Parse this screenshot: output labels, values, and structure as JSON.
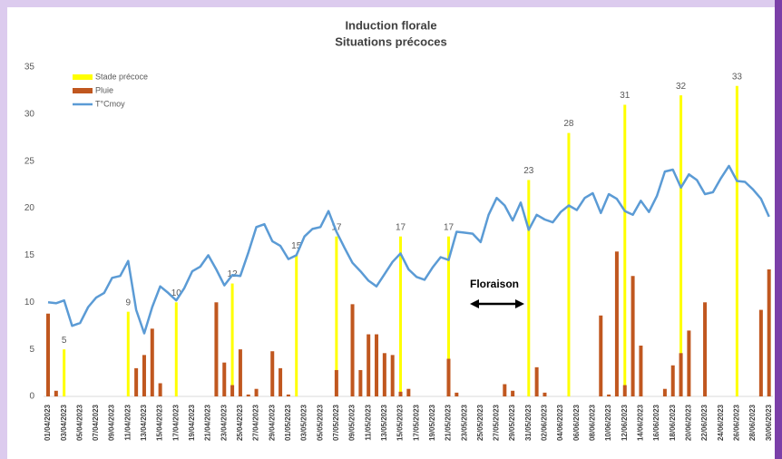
{
  "chart_data": {
    "type": "bar_line",
    "title": "Induction florale",
    "subtitle": "Situations précoces",
    "annotation": "Floraison",
    "legend": "top-left",
    "categories": [
      "01/04/2023",
      null,
      "03/04/2023",
      null,
      "05/04/2023",
      null,
      "07/04/2023",
      null,
      "09/04/2023",
      null,
      "11/04/2023",
      null,
      "13/04/2023",
      null,
      "15/04/2023",
      null,
      "17/04/2023",
      null,
      "19/04/2023",
      null,
      "21/04/2023",
      null,
      "23/04/2023",
      null,
      "25/04/2023",
      null,
      "27/04/2023",
      null,
      "29/04/2023",
      null,
      "01/05/2023",
      null,
      "03/05/2023",
      null,
      "05/05/2023",
      null,
      "07/05/2023",
      null,
      "09/05/2023",
      null,
      "11/05/2023",
      null,
      "13/05/2023",
      null,
      "15/05/2023",
      null,
      "17/05/2023",
      null,
      "19/05/2023",
      null,
      "21/05/2023",
      null,
      "23/05/2023",
      null,
      "25/05/2023",
      null,
      "27/05/2023",
      null,
      "29/05/2023",
      null,
      "31/05/2023",
      null,
      "02/06/2023",
      null,
      "04/06/2023",
      null,
      "06/06/2023",
      null,
      "08/06/2023",
      null,
      "10/06/2023",
      null,
      "12/06/2023",
      null,
      "14/06/2023",
      null,
      "16/06/2023",
      null,
      "18/06/2023",
      null,
      "20/06/2023",
      null,
      "22/06/2023",
      null,
      "24/06/2023",
      null,
      "26/06/2023",
      null,
      "28/06/2023",
      null,
      "30/06/2023"
    ],
    "series": [
      {
        "name": "Stade précoce",
        "kind": "bar",
        "color": "#ffff00",
        "values": [
          null,
          null,
          5,
          null,
          null,
          null,
          null,
          null,
          null,
          null,
          9,
          null,
          null,
          null,
          null,
          null,
          10,
          null,
          null,
          null,
          null,
          null,
          null,
          12,
          null,
          null,
          null,
          null,
          null,
          null,
          null,
          15,
          null,
          null,
          null,
          null,
          17,
          null,
          null,
          null,
          null,
          null,
          null,
          null,
          17,
          null,
          null,
          null,
          null,
          null,
          17,
          null,
          null,
          null,
          null,
          null,
          null,
          null,
          null,
          null,
          23,
          null,
          null,
          null,
          null,
          28,
          null,
          null,
          null,
          null,
          null,
          null,
          31,
          null,
          null,
          null,
          null,
          null,
          null,
          32,
          null,
          null,
          null,
          null,
          null,
          null,
          33,
          null,
          null,
          null,
          null
        ]
      },
      {
        "name": "Pluie",
        "kind": "bar",
        "color": "#c0571f",
        "values": [
          8.8,
          0.6,
          null,
          null,
          null,
          null,
          null,
          null,
          null,
          null,
          null,
          3.0,
          4.4,
          7.2,
          1.4,
          null,
          null,
          null,
          null,
          null,
          null,
          10,
          3.6,
          1.2,
          5,
          0.2,
          0.8,
          null,
          4.8,
          3.0,
          0.2,
          null,
          null,
          null,
          null,
          null,
          2.8,
          null,
          9.8,
          2.8,
          6.6,
          6.6,
          4.6,
          4.4,
          0.5,
          0.8,
          null,
          null,
          null,
          null,
          4.0,
          0.4,
          null,
          null,
          null,
          null,
          null,
          1.3,
          0.6,
          null,
          null,
          3.1,
          0.4,
          null,
          null,
          null,
          null,
          null,
          null,
          8.6,
          0.2,
          15.4,
          1.2,
          12.8,
          5.4,
          null,
          null,
          0.8,
          3.3,
          4.6,
          7.0,
          null,
          10,
          null,
          null,
          null,
          null,
          null,
          null,
          9.2,
          13.5
        ]
      },
      {
        "name": "T°Cmoy",
        "kind": "line",
        "color": "#5b9bd5",
        "values": [
          10,
          9.9,
          10.2,
          7.5,
          7.8,
          9.5,
          10.5,
          11,
          12.6,
          12.8,
          14.4,
          9.2,
          6.7,
          9.5,
          11.7,
          11,
          10.2,
          11.5,
          13.3,
          13.8,
          15,
          13.5,
          11.8,
          12.9,
          12.8,
          15.3,
          18,
          18.3,
          16.5,
          16,
          14.6,
          15,
          17,
          17.8,
          18,
          19.7,
          17.5,
          15.8,
          14.2,
          13.3,
          12.3,
          11.7,
          13,
          14.3,
          15.2,
          13.5,
          12.7,
          12.4,
          13.7,
          14.8,
          14.5,
          17.5,
          17.4,
          17.3,
          16.4,
          19.3,
          21.1,
          20.3,
          18.7,
          20.6,
          17.7,
          19.3,
          18.8,
          18.5,
          19.6,
          20.3,
          19.8,
          21.1,
          21.6,
          19.5,
          21.5,
          21,
          19.7,
          19.3,
          20.8,
          19.6,
          21.3,
          23.9,
          24.1,
          22.2,
          23.6,
          23,
          21.5,
          21.7,
          23.2,
          24.5,
          22.9,
          22.8,
          22,
          21,
          19.1
        ]
      }
    ],
    "ylim": [
      0,
      35
    ],
    "yticks": [
      0,
      5,
      10,
      15,
      20,
      25,
      30,
      35
    ],
    "grid": false
  }
}
